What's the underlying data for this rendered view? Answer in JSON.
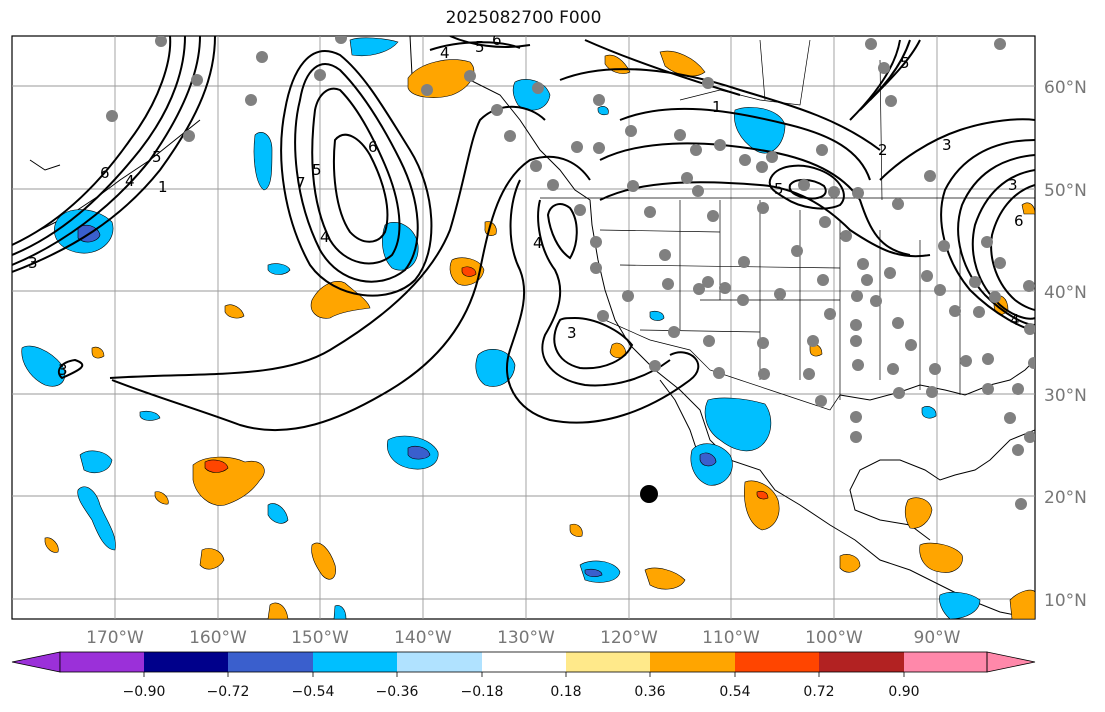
{
  "title": "2025082700 F000",
  "map": {
    "lat_labels": [
      "60°N",
      "50°N",
      "40°N",
      "30°N",
      "20°N",
      "10°N"
    ],
    "lon_labels": [
      "170°W",
      "160°W",
      "150°W",
      "140°W",
      "130°W",
      "120°W",
      "110°W",
      "100°W",
      "90°W"
    ],
    "contour_labels": [
      "6",
      "5",
      "4",
      "1",
      "3",
      "7",
      "5",
      "6",
      "4",
      "3",
      "4",
      "3",
      "5",
      "4",
      "5",
      "6",
      "1",
      "5",
      "2",
      "6",
      "3",
      "4",
      "3"
    ],
    "colors": {
      "ocean": "#ffffff",
      "grid": "#9a9a9a",
      "contour": "#000000",
      "station": "#808080",
      "marker": "#000000"
    }
  },
  "colorbar": {
    "ticks": [
      "−0.90",
      "−0.72",
      "−0.54",
      "−0.36",
      "−0.18",
      "0.18",
      "0.36",
      "0.54",
      "0.72",
      "0.90"
    ],
    "colors": [
      "#9b30d9",
      "#00008b",
      "#3a5fcd",
      "#00bfff",
      "#b0e2ff",
      "#ffffff",
      "#ffe98a",
      "#ffa500",
      "#ff4500",
      "#b22222",
      "#ff88aa"
    ]
  }
}
